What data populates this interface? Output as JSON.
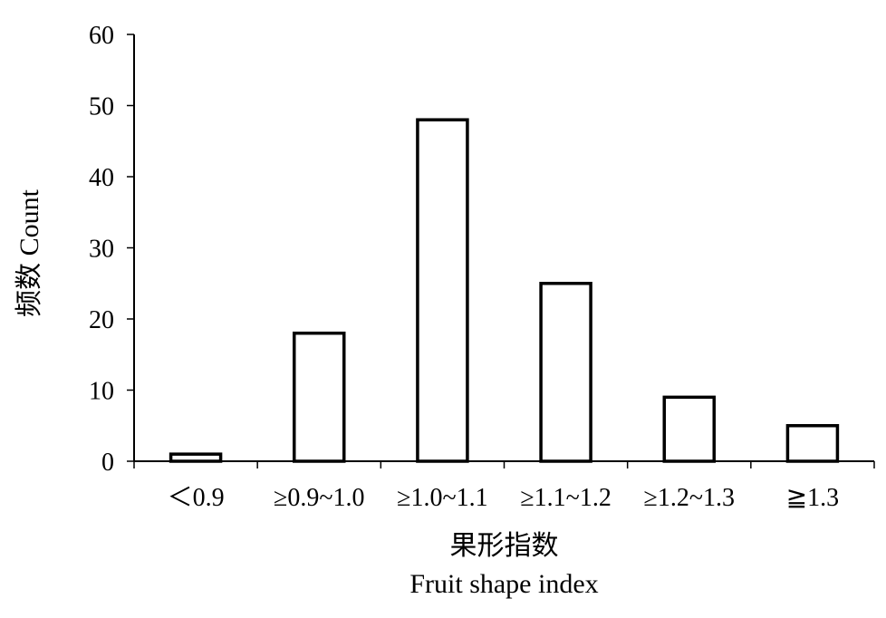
{
  "chart_data": {
    "type": "bar",
    "categories": [
      "＜0.9",
      "≥0.9~1.0",
      "≥1.0~1.1",
      "≥1.1~1.2",
      "≥1.2~1.3",
      "≧1.3"
    ],
    "values": [
      1,
      18,
      48,
      25,
      9,
      5
    ],
    "ylim": [
      0,
      60
    ],
    "yticks": [
      0,
      10,
      20,
      30,
      40,
      50,
      60
    ],
    "ylabel": "频数 Count",
    "xlabel_cn": "果形指数",
    "xlabel_en": "Fruit shape index",
    "grid": false,
    "legend": "none",
    "colors": {
      "bar_fill": "#ffffff",
      "bar_stroke": "#000000",
      "axis": "#000000"
    }
  }
}
